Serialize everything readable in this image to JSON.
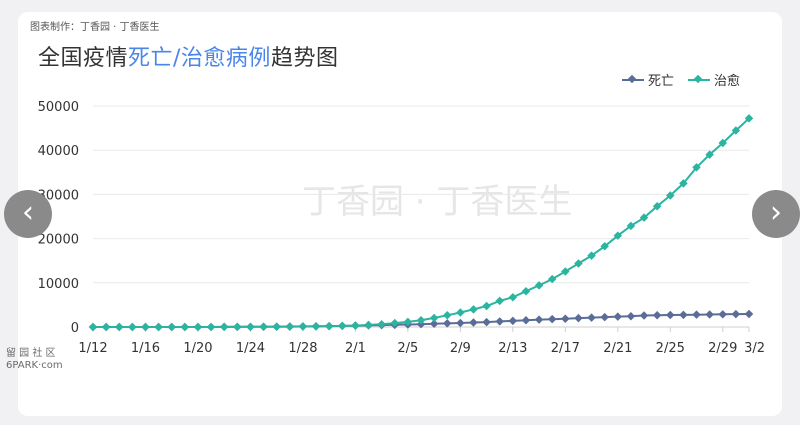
{
  "source_label": "图表制作：丁香园 · 丁香医生",
  "title": {
    "prefix": "全国疫情",
    "highlight": "死亡/治愈病例",
    "suffix": "趋势图"
  },
  "watermark": "丁香园 · 丁香医生",
  "corner_watermark": [
    "留 园 社 区",
    "6PARK·com"
  ],
  "nav": {
    "prev_icon": "‹",
    "next_icon": "›"
  },
  "colors": {
    "deaths": "#5b6c97",
    "recovered": "#2bb5a0",
    "highlight": "#4a86e8"
  },
  "chart_data": {
    "type": "line",
    "title": "全国疫情死亡/治愈病例趋势图",
    "xlabel": "",
    "ylabel": "",
    "ylim": [
      0,
      50000
    ],
    "yticks": [
      0,
      10000,
      20000,
      30000,
      40000,
      50000
    ],
    "grid": true,
    "legend_position": "top-right",
    "x_tick_labels": [
      "1/12",
      "1/16",
      "1/20",
      "1/24",
      "1/28",
      "2/1",
      "2/5",
      "2/9",
      "2/13",
      "2/17",
      "2/21",
      "2/25",
      "2/29",
      "3/2"
    ],
    "x": [
      "1/12",
      "1/13",
      "1/14",
      "1/15",
      "1/16",
      "1/17",
      "1/18",
      "1/19",
      "1/20",
      "1/21",
      "1/22",
      "1/23",
      "1/24",
      "1/25",
      "1/26",
      "1/27",
      "1/28",
      "1/29",
      "1/30",
      "1/31",
      "2/1",
      "2/2",
      "2/3",
      "2/4",
      "2/5",
      "2/6",
      "2/7",
      "2/8",
      "2/9",
      "2/10",
      "2/11",
      "2/12",
      "2/13",
      "2/14",
      "2/15",
      "2/16",
      "2/17",
      "2/18",
      "2/19",
      "2/20",
      "2/21",
      "2/22",
      "2/23",
      "2/24",
      "2/25",
      "2/26",
      "2/27",
      "2/28",
      "2/29",
      "3/1",
      "3/2"
    ],
    "series": [
      {
        "name": "死亡",
        "values": [
          1,
          1,
          1,
          1,
          2,
          2,
          2,
          3,
          6,
          9,
          17,
          25,
          41,
          56,
          80,
          106,
          132,
          170,
          213,
          259,
          304,
          361,
          425,
          490,
          563,
          636,
          722,
          811,
          908,
          1016,
          1113,
          1259,
          1380,
          1523,
          1665,
          1770,
          1868,
          2004,
          2118,
          2236,
          2345,
          2442,
          2592,
          2663,
          2715,
          2744,
          2788,
          2835,
          2870,
          2912,
          2943
        ]
      },
      {
        "name": "治愈",
        "values": [
          0,
          0,
          0,
          0,
          0,
          0,
          0,
          0,
          0,
          0,
          28,
          34,
          38,
          49,
          51,
          60,
          103,
          124,
          171,
          243,
          328,
          475,
          632,
          892,
          1153,
          1540,
          2050,
          2649,
          3281,
          3996,
          4740,
          5911,
          6723,
          8096,
          9419,
          10844,
          12552,
          14376,
          16155,
          18264,
          20659,
          22888,
          24734,
          27323,
          29745,
          32495,
          36117,
          39002,
          41625,
          44462,
          47204
        ]
      }
    ]
  }
}
